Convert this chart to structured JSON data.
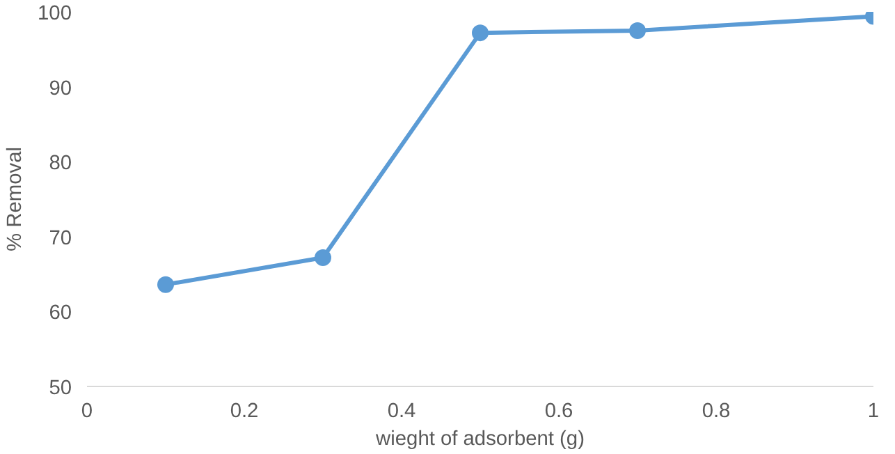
{
  "chart_data": {
    "type": "line",
    "xlabel": "wieght of adsorbent (g)",
    "ylabel": "% Removal",
    "x": [
      0.1,
      0.3,
      0.5,
      0.7,
      1.0
    ],
    "series": [
      {
        "color": "#5b9bd5",
        "values": [
          63.6,
          67.2,
          97.2,
          97.5,
          99.4
        ]
      }
    ],
    "xlim": [
      0,
      1
    ],
    "xticks": [
      0,
      0.2,
      0.4,
      0.6,
      0.8,
      1
    ],
    "ylim": [
      50,
      100
    ],
    "yticks": [
      50,
      60,
      70,
      80,
      90,
      100
    ],
    "grid": false,
    "marker": "circle",
    "line_style": "solid"
  }
}
